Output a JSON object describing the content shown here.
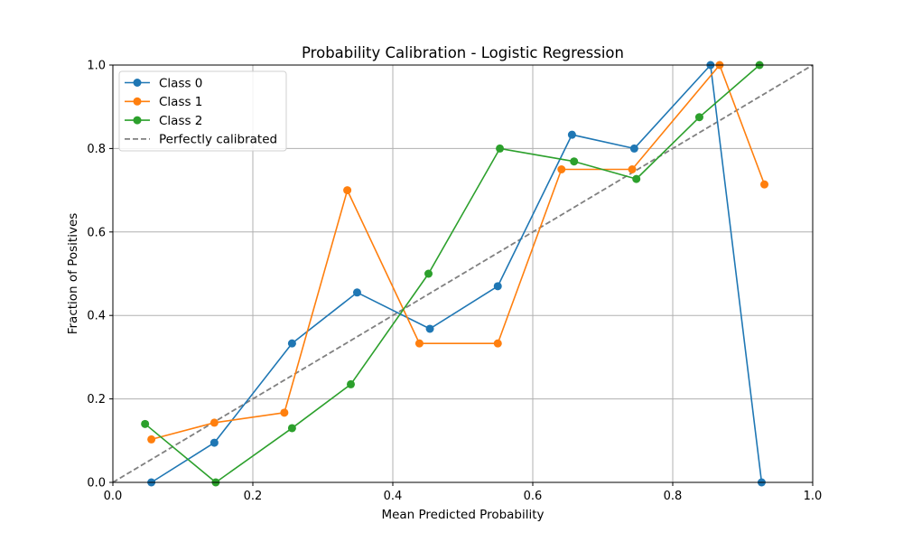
{
  "chart_data": {
    "type": "line",
    "title": "Probability Calibration - Logistic Regression",
    "xlabel": "Mean Predicted Probability",
    "ylabel": "Fraction of Positives",
    "xlim": [
      0.0,
      1.0
    ],
    "ylim": [
      0.0,
      1.0
    ],
    "xticks": [
      "0.0",
      "0.2",
      "0.4",
      "0.6",
      "0.8",
      "1.0"
    ],
    "yticks": [
      "0.0",
      "0.2",
      "0.4",
      "0.6",
      "0.8",
      "1.0"
    ],
    "grid": true,
    "legend_position": "top-left",
    "series": [
      {
        "name": "Class 0",
        "color": "#1f77b4",
        "style": "solid",
        "marker": "circle",
        "points": [
          [
            0.055,
            0.0
          ],
          [
            0.145,
            0.095
          ],
          [
            0.256,
            0.333
          ],
          [
            0.349,
            0.455
          ],
          [
            0.453,
            0.368
          ],
          [
            0.55,
            0.47
          ],
          [
            0.656,
            0.833
          ],
          [
            0.745,
            0.8
          ],
          [
            0.854,
            1.0
          ],
          [
            0.927,
            0.0
          ]
        ]
      },
      {
        "name": "Class 1",
        "color": "#ff7f0e",
        "style": "solid",
        "marker": "circle",
        "points": [
          [
            0.055,
            0.103
          ],
          [
            0.145,
            0.143
          ],
          [
            0.245,
            0.167
          ],
          [
            0.335,
            0.7
          ],
          [
            0.438,
            0.333
          ],
          [
            0.55,
            0.333
          ],
          [
            0.641,
            0.75
          ],
          [
            0.742,
            0.75
          ],
          [
            0.867,
            1.0
          ],
          [
            0.931,
            0.714
          ]
        ]
      },
      {
        "name": "Class 2",
        "color": "#2ca02c",
        "style": "solid",
        "marker": "circle",
        "points": [
          [
            0.046,
            0.14
          ],
          [
            0.147,
            0.0
          ],
          [
            0.256,
            0.13
          ],
          [
            0.34,
            0.235
          ],
          [
            0.451,
            0.5
          ],
          [
            0.553,
            0.8
          ],
          [
            0.659,
            0.769
          ],
          [
            0.748,
            0.727
          ],
          [
            0.838,
            0.875
          ],
          [
            0.924,
            1.0
          ]
        ]
      },
      {
        "name": "Perfectly calibrated",
        "color": "#808080",
        "style": "dashed",
        "marker": "none",
        "points": [
          [
            0.0,
            0.0
          ],
          [
            1.0,
            1.0
          ]
        ]
      }
    ]
  }
}
